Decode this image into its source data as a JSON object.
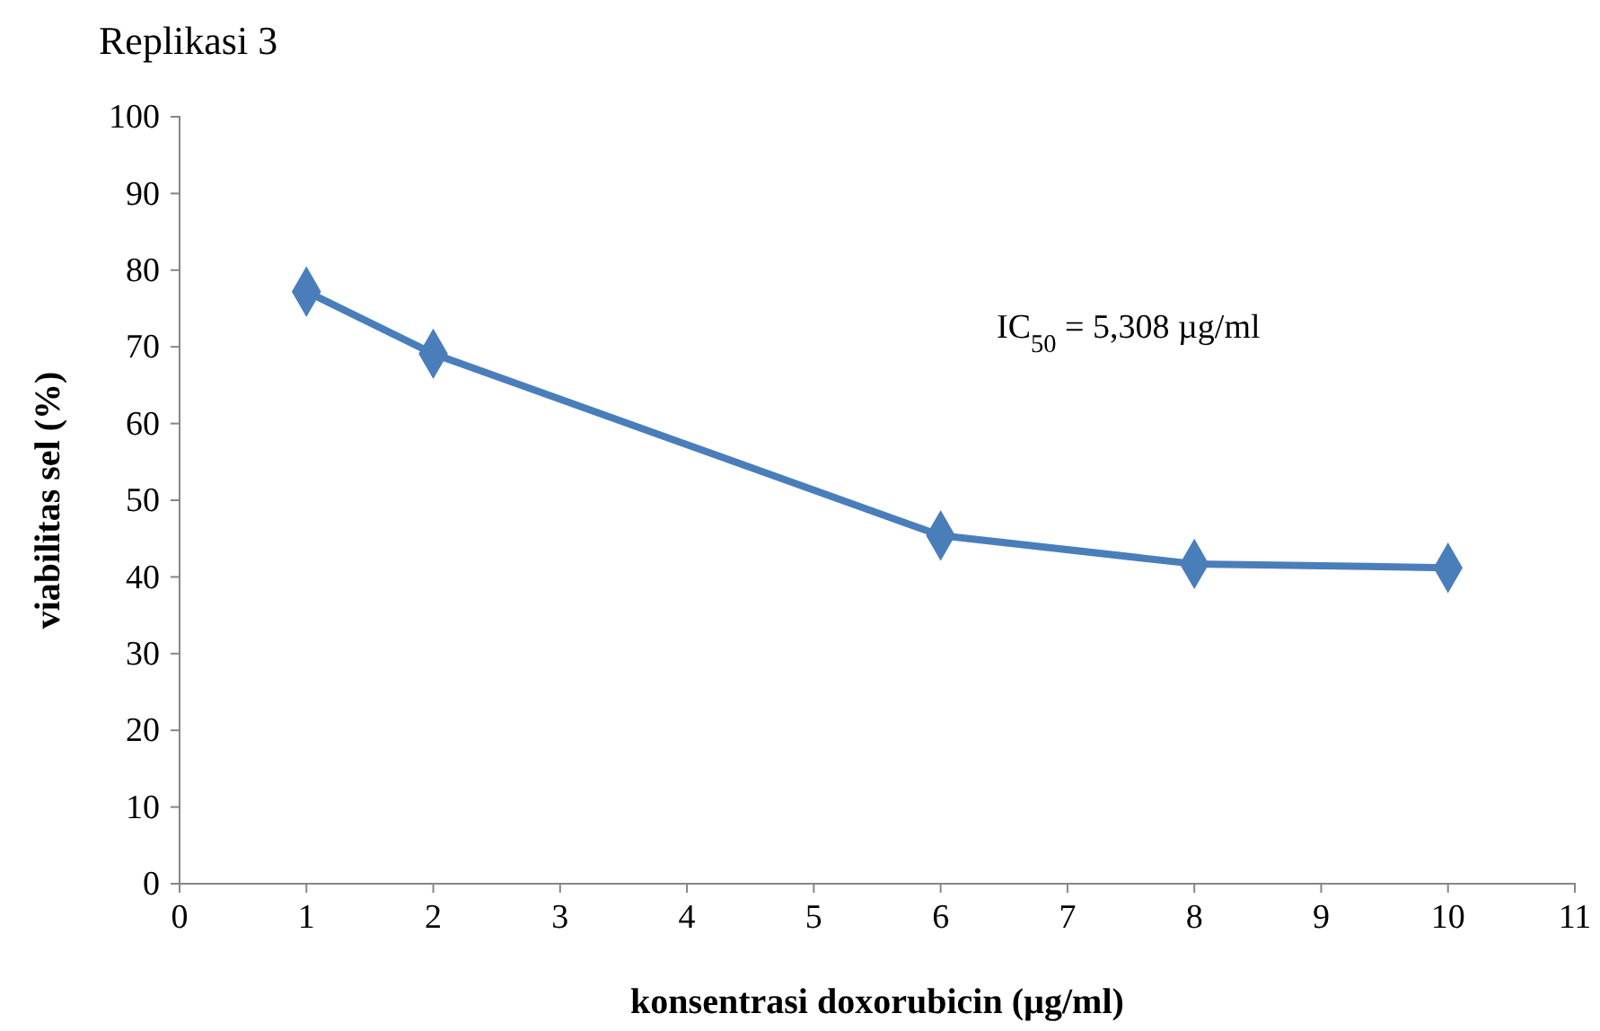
{
  "chart_data": {
    "type": "line",
    "title": "Replikasi  3",
    "xlabel": "konsentrasi doxorubicin (µg/ml)",
    "ylabel": "viabilitas sel (%)",
    "annotations": [
      "IC$_{50}$ = 5,308 µg/ml"
    ],
    "x": [
      1,
      2,
      6,
      8,
      10
    ],
    "series": [
      {
        "color": "#4a7ebb",
        "values": [
          77.2,
          69.1,
          45.4,
          41.7,
          41.2
        ]
      }
    ],
    "xlim": [
      0,
      11
    ],
    "xticks": [
      0,
      1,
      2,
      3,
      4,
      5,
      6,
      7,
      8,
      9,
      10,
      11
    ],
    "ylim": [
      0,
      100
    ],
    "yticks": [
      0,
      10,
      20,
      30,
      40,
      50,
      60,
      70,
      80,
      90,
      100
    ],
    "grid": false,
    "marker": "diamond",
    "line_style": "solid"
  }
}
